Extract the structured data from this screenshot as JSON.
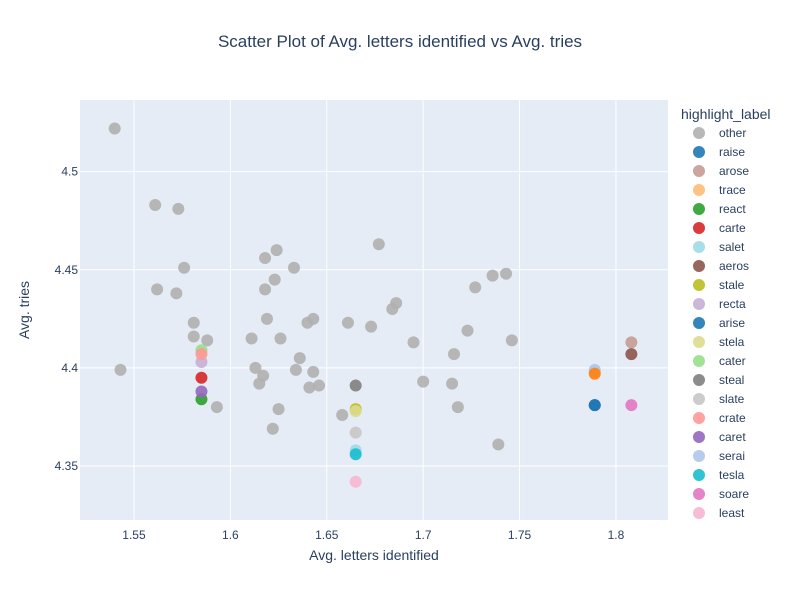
{
  "chart_data": {
    "type": "scatter",
    "title": "Scatter Plot of Avg. letters identified vs Avg. tries",
    "xlabel": "Avg. letters identified",
    "ylabel": "Avg. tries",
    "xlim": [
      1.522,
      1.827
    ],
    "ylim": [
      4.3225,
      4.5365
    ],
    "x_ticks": [
      1.55,
      1.6,
      1.65,
      1.7,
      1.75,
      1.8
    ],
    "x_tick_labels": [
      "1.55",
      "1.6",
      "1.65",
      "1.7",
      "1.75",
      "1.8"
    ],
    "y_ticks": [
      4.35,
      4.4,
      4.45,
      4.5
    ],
    "y_tick_labels": [
      "4.35",
      "4.4",
      "4.45",
      "4.5"
    ],
    "grid": true,
    "legend_title": "highlight_label",
    "legend_position": "right",
    "series": [
      {
        "name": "other",
        "color": "#b0b0b0",
        "points": [
          [
            1.54,
            4.522
          ],
          [
            1.543,
            4.399
          ],
          [
            1.561,
            4.483
          ],
          [
            1.562,
            4.44
          ],
          [
            1.573,
            4.481
          ],
          [
            1.572,
            4.438
          ],
          [
            1.576,
            4.451
          ],
          [
            1.581,
            4.423
          ],
          [
            1.581,
            4.416
          ],
          [
            1.588,
            4.414
          ],
          [
            1.593,
            4.38
          ],
          [
            1.611,
            4.415
          ],
          [
            1.613,
            4.4
          ],
          [
            1.615,
            4.392
          ],
          [
            1.617,
            4.396
          ],
          [
            1.618,
            4.456
          ],
          [
            1.618,
            4.44
          ],
          [
            1.619,
            4.425
          ],
          [
            1.622,
            4.369
          ],
          [
            1.623,
            4.445
          ],
          [
            1.624,
            4.46
          ],
          [
            1.625,
            4.379
          ],
          [
            1.626,
            4.415
          ],
          [
            1.633,
            4.451
          ],
          [
            1.634,
            4.399
          ],
          [
            1.636,
            4.405
          ],
          [
            1.64,
            4.423
          ],
          [
            1.641,
            4.39
          ],
          [
            1.643,
            4.425
          ],
          [
            1.643,
            4.398
          ],
          [
            1.646,
            4.391
          ],
          [
            1.658,
            4.376
          ],
          [
            1.661,
            4.423
          ],
          [
            1.673,
            4.421
          ],
          [
            1.677,
            4.463
          ],
          [
            1.684,
            4.43
          ],
          [
            1.686,
            4.433
          ],
          [
            1.695,
            4.413
          ],
          [
            1.7,
            4.393
          ],
          [
            1.715,
            4.392
          ],
          [
            1.716,
            4.407
          ],
          [
            1.718,
            4.38
          ],
          [
            1.723,
            4.419
          ],
          [
            1.727,
            4.441
          ],
          [
            1.736,
            4.447
          ],
          [
            1.739,
            4.361
          ],
          [
            1.743,
            4.448
          ],
          [
            1.746,
            4.414
          ]
        ]
      },
      {
        "name": "raise",
        "color": "#1f77b4",
        "points": [
          [
            1.789,
            4.381
          ]
        ]
      },
      {
        "name": "arose",
        "color": "#c49c94",
        "points": [
          [
            1.808,
            4.413
          ]
        ]
      },
      {
        "name": "trace",
        "color": "#ffbb78",
        "points": [
          [
            1.789,
            4.398
          ]
        ]
      },
      {
        "name": "react",
        "color": "#2ca02c",
        "points": [
          [
            1.585,
            4.384
          ]
        ]
      },
      {
        "name": "carte",
        "color": "#d62728",
        "points": [
          [
            1.585,
            4.395
          ]
        ]
      },
      {
        "name": "salet",
        "color": "#9edae5",
        "points": [
          [
            1.665,
            4.358
          ]
        ]
      },
      {
        "name": "aeros",
        "color": "#8c564b",
        "points": [
          [
            1.808,
            4.407
          ]
        ]
      },
      {
        "name": "stale",
        "color": "#bcbd22",
        "points": [
          [
            1.665,
            4.379
          ]
        ]
      },
      {
        "name": "recta",
        "color": "#c5b0d5",
        "points": [
          [
            1.585,
            4.403
          ]
        ]
      },
      {
        "name": "arise",
        "color": "#1f77b4",
        "points": [
          [
            1.789,
            4.381
          ]
        ]
      },
      {
        "name": "stela",
        "color": "#dbdb8d",
        "points": [
          [
            1.665,
            4.378
          ]
        ]
      },
      {
        "name": "cater",
        "color": "#98df8a",
        "points": [
          [
            1.585,
            4.409
          ]
        ]
      },
      {
        "name": "steal",
        "color": "#7f7f7f",
        "points": [
          [
            1.665,
            4.391
          ]
        ]
      },
      {
        "name": "slate",
        "color": "#c7c7c7",
        "points": [
          [
            1.665,
            4.367
          ]
        ]
      },
      {
        "name": "crate",
        "color": "#ff9896",
        "points": [
          [
            1.585,
            4.407
          ]
        ]
      },
      {
        "name": "caret",
        "color": "#9467bd",
        "points": [
          [
            1.585,
            4.388
          ]
        ]
      },
      {
        "name": "serai",
        "color": "#aec7e8",
        "points": [
          [
            1.789,
            4.399
          ]
        ]
      },
      {
        "name": "tesla",
        "color": "#17becf",
        "points": [
          [
            1.665,
            4.356
          ]
        ]
      },
      {
        "name": "soare",
        "color": "#e377c2",
        "points": [
          [
            1.808,
            4.381
          ]
        ]
      },
      {
        "name": "least",
        "color": "#f7b6d2",
        "points": [
          [
            1.665,
            4.342
          ]
        ]
      }
    ],
    "extra_points": [
      {
        "color": "#ff7f0e",
        "x": 1.789,
        "y": 4.397
      }
    ]
  }
}
